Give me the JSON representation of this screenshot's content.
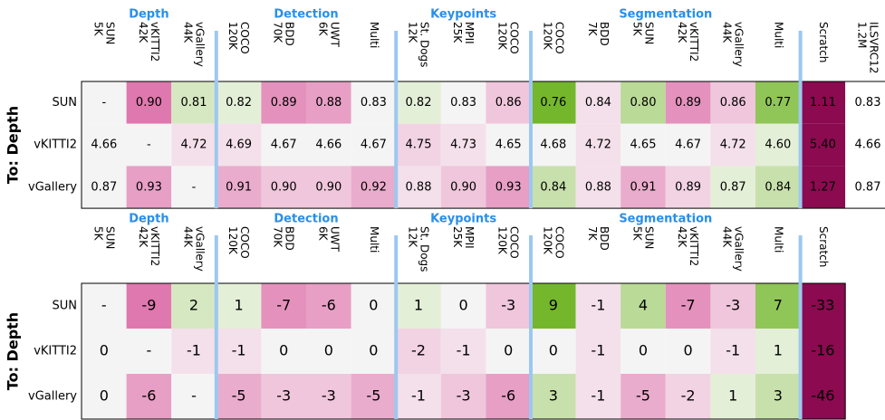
{
  "panels": [
    {
      "groups": [
        {
          "label": "Depth",
          "span": 3
        },
        {
          "label": "Detection",
          "span": 4
        },
        {
          "label": "Keypoints",
          "span": 3
        },
        {
          "label": "Segmentation",
          "span": 6
        }
      ],
      "columns": [
        [
          "SUN",
          "5K"
        ],
        [
          "vKITTI2",
          "42K"
        ],
        [
          "vGallery",
          "44K"
        ],
        [
          "COCO",
          "120K"
        ],
        [
          "BDD",
          "70K"
        ],
        [
          "UWT",
          "6K"
        ],
        [
          "Multi"
        ],
        [
          "St. Dogs",
          "12K"
        ],
        [
          "MPII",
          "25K"
        ],
        [
          "COCO",
          "120K"
        ],
        [
          "COCO",
          "120K"
        ],
        [
          "BDD",
          "7K"
        ],
        [
          "SUN",
          "5K"
        ],
        [
          "vKITTI2",
          "42K"
        ],
        [
          "vGallery",
          "44K"
        ],
        [
          "Multi"
        ],
        [
          "Scratch"
        ],
        [
          "ILSVRC12",
          "1.2M"
        ]
      ],
      "row_title": "To: Depth",
      "rows": [
        {
          "label": "SUN",
          "cells": [
            "-",
            "0.90",
            "0.81",
            "0.82",
            "0.89",
            "0.88",
            "0.83",
            "0.82",
            "0.83",
            "0.86",
            "0.76",
            "0.84",
            "0.80",
            "0.89",
            "0.86",
            "0.77",
            "1.11",
            "0.83"
          ]
        },
        {
          "label": "vKITTI2",
          "cells": [
            "4.66",
            "-",
            "4.72",
            "4.69",
            "4.67",
            "4.66",
            "4.67",
            "4.75",
            "4.73",
            "4.65",
            "4.68",
            "4.72",
            "4.65",
            "4.67",
            "4.72",
            "4.60",
            "5.40",
            "4.66"
          ]
        },
        {
          "label": "vGallery",
          "cells": [
            "0.87",
            "0.93",
            "-",
            "0.91",
            "0.90",
            "0.90",
            "0.92",
            "0.88",
            "0.90",
            "0.93",
            "0.84",
            "0.88",
            "0.91",
            "0.89",
            "0.87",
            "0.84",
            "1.27",
            "0.87"
          ]
        }
      ]
    },
    {
      "groups": [
        {
          "label": "Depth",
          "span": 3
        },
        {
          "label": "Detection",
          "span": 4
        },
        {
          "label": "Keypoints",
          "span": 3
        },
        {
          "label": "Segmentation",
          "span": 6
        }
      ],
      "columns": [
        [
          "SUN",
          "5K"
        ],
        [
          "vKITTI2",
          "42K"
        ],
        [
          "vGallery",
          "44K"
        ],
        [
          "COCO",
          "120K"
        ],
        [
          "BDD",
          "70K"
        ],
        [
          "UWT",
          "6K"
        ],
        [
          "Multi"
        ],
        [
          "St. Dogs",
          "12K"
        ],
        [
          "MPII",
          "25K"
        ],
        [
          "COCO",
          "120K"
        ],
        [
          "COCO",
          "120K"
        ],
        [
          "BDD",
          "7K"
        ],
        [
          "SUN",
          "5K"
        ],
        [
          "vKITTI2",
          "42K"
        ],
        [
          "vGallery",
          "44K"
        ],
        [
          "Multi"
        ],
        [
          "Scratch"
        ]
      ],
      "row_title": "To: Depth",
      "rows": [
        {
          "label": "SUN",
          "cells": [
            "-",
            "-9",
            "2",
            "1",
            "-7",
            "-6",
            "0",
            "1",
            "0",
            "-3",
            "9",
            "-1",
            "4",
            "-7",
            "-3",
            "7",
            "-33"
          ]
        },
        {
          "label": "vKITTI2",
          "cells": [
            "0",
            "-",
            "-1",
            "-1",
            "0",
            "0",
            "0",
            "-2",
            "-1",
            "0",
            "0",
            "-1",
            "0",
            "0",
            "-1",
            "1",
            "-16"
          ]
        },
        {
          "label": "vGallery",
          "cells": [
            "0",
            "-6",
            "-",
            "-5",
            "-3",
            "-3",
            "-5",
            "-1",
            "-3",
            "-6",
            "3",
            "-1",
            "-5",
            "-2",
            "1",
            "3",
            "-46"
          ]
        }
      ]
    }
  ]
}
